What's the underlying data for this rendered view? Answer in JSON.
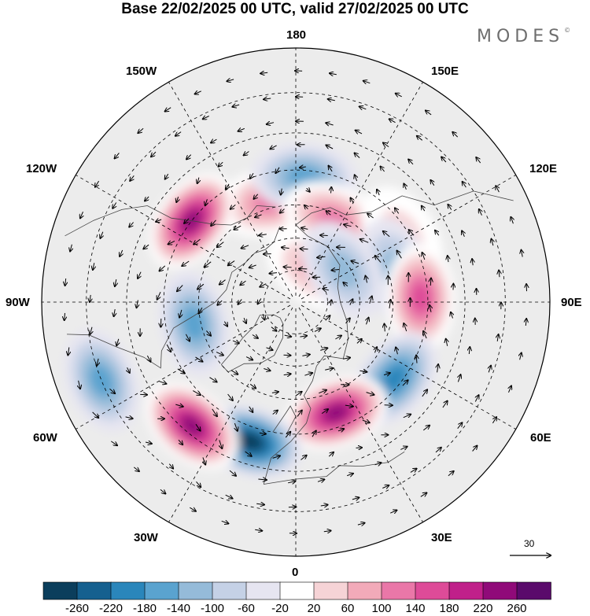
{
  "title": "Base 22/02/2025 00 UTC, valid 27/02/2025 00 UTC",
  "logo": "MODES",
  "logo_mark": "©",
  "longitude_labels": {
    "top": "180",
    "top_left": "150W",
    "top_right": "150E",
    "upper_left": "120W",
    "upper_right": "120E",
    "left": "90W",
    "right": "90E",
    "lower_left": "60W",
    "lower_right": "60E",
    "bottom_left": "30W",
    "bottom_right": "30E",
    "bottom": "0"
  },
  "reference_vector": "30",
  "colorbar": {
    "ticks": [
      "-260",
      "-220",
      "-180",
      "-140",
      "-100",
      "-60",
      "-20",
      "20",
      "60",
      "100",
      "140",
      "180",
      "220",
      "260"
    ],
    "colors": [
      "#0b3e5c",
      "#15608f",
      "#2a86bb",
      "#5aa3cf",
      "#95bbd9",
      "#c5d1e6",
      "#e6e5f1",
      "#ffffff",
      "#f6d3d6",
      "#f2aab9",
      "#ea77a8",
      "#de4b98",
      "#c0208a",
      "#900a79",
      "#5a0a6b"
    ]
  },
  "anomaly_centers": [
    {
      "lon": -166,
      "lat": 58,
      "value": 120
    },
    {
      "lon": 176,
      "lat": 52,
      "value": -130
    },
    {
      "lon": 155,
      "lat": 62,
      "value": 110
    },
    {
      "lon": 122,
      "lat": 52,
      "value": 40
    },
    {
      "lon": 108,
      "lat": 58,
      "value": -90
    },
    {
      "lon": 92,
      "lat": 52,
      "value": 160
    },
    {
      "lon": 52,
      "lat": 52,
      "value": -150
    },
    {
      "lon": 20,
      "lat": 54,
      "value": 240
    },
    {
      "lon": -18,
      "lat": 46,
      "value": -220
    },
    {
      "lon": -40,
      "lat": 42,
      "value": 250
    },
    {
      "lon": -78,
      "lat": 58,
      "value": -110
    },
    {
      "lon": -128,
      "lat": 50,
      "value": 230
    },
    {
      "lon": -68,
      "lat": 30,
      "value": -110
    },
    {
      "lon": 148,
      "lat": 78,
      "value": 90
    },
    {
      "lon": 124,
      "lat": 72,
      "value": -60
    }
  ]
}
